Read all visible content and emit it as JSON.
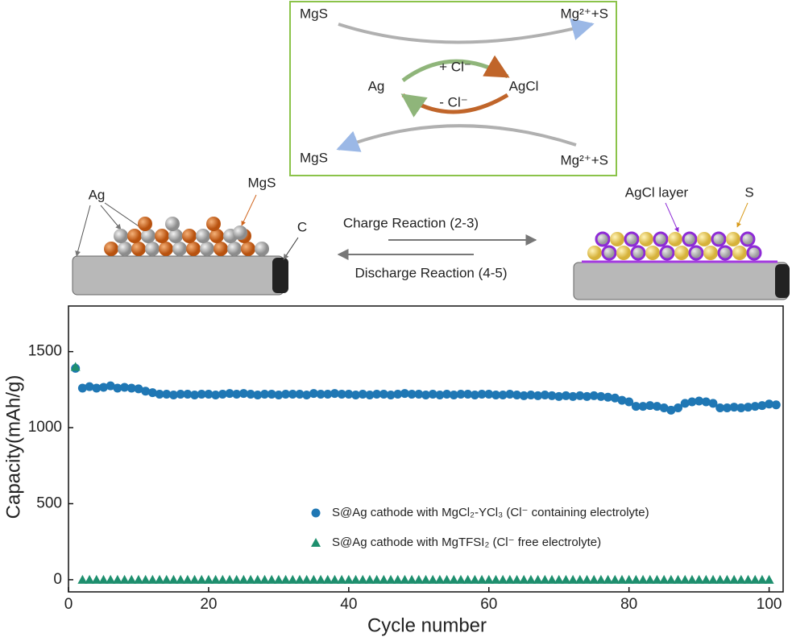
{
  "schematic": {
    "box": {
      "top_left": "MgS",
      "top_right": "Mg²⁺+S",
      "plus_cl": "+ Cl⁻",
      "ag": "Ag",
      "agcl": "AgCl",
      "minus_cl": "- Cl⁻",
      "bottom_left": "MgS",
      "bottom_right": "Mg²⁺+S"
    },
    "left": {
      "ag": "Ag",
      "mgs": "MgS",
      "c": "C"
    },
    "charge": "Charge Reaction (2-3)",
    "discharge": "Discharge Reaction (4-5)",
    "right": {
      "agcl_layer": "AgCl layer",
      "s": "S"
    }
  },
  "chart_data": {
    "type": "scatter",
    "xlabel": "Cycle number",
    "ylabel": "Capacity(mAh/g)",
    "xlim": [
      0,
      102
    ],
    "ylim": [
      -80,
      1800
    ],
    "xticks": [
      0,
      20,
      40,
      60,
      80,
      100
    ],
    "yticks": [
      0,
      500,
      1000,
      1500
    ],
    "legend": "lower right",
    "series": [
      {
        "name": "S@Ag cathode with MgCl₂-YCl₃ (Cl⁻ containing electrolyte)",
        "color": "#1f77b4",
        "marker": "circle",
        "x": [
          1,
          2,
          3,
          4,
          5,
          6,
          7,
          8,
          9,
          10,
          11,
          12,
          13,
          14,
          15,
          16,
          17,
          18,
          19,
          20,
          21,
          22,
          23,
          24,
          25,
          26,
          27,
          28,
          29,
          30,
          31,
          32,
          33,
          34,
          35,
          36,
          37,
          38,
          39,
          40,
          41,
          42,
          43,
          44,
          45,
          46,
          47,
          48,
          49,
          50,
          51,
          52,
          53,
          54,
          55,
          56,
          57,
          58,
          59,
          60,
          61,
          62,
          63,
          64,
          65,
          66,
          67,
          68,
          69,
          70,
          71,
          72,
          73,
          74,
          75,
          76,
          77,
          78,
          79,
          80,
          81,
          82,
          83,
          84,
          85,
          86,
          87,
          88,
          89,
          90,
          91,
          92,
          93,
          94,
          95,
          96,
          97,
          98,
          99,
          100,
          101
        ],
        "values": [
          1390,
          1260,
          1270,
          1260,
          1265,
          1275,
          1260,
          1265,
          1260,
          1255,
          1240,
          1230,
          1220,
          1220,
          1215,
          1220,
          1220,
          1215,
          1220,
          1220,
          1215,
          1220,
          1225,
          1220,
          1225,
          1220,
          1215,
          1220,
          1220,
          1215,
          1220,
          1220,
          1220,
          1215,
          1225,
          1220,
          1220,
          1225,
          1220,
          1220,
          1215,
          1220,
          1215,
          1220,
          1220,
          1215,
          1220,
          1225,
          1220,
          1220,
          1215,
          1220,
          1215,
          1220,
          1215,
          1220,
          1220,
          1215,
          1220,
          1220,
          1215,
          1215,
          1220,
          1215,
          1210,
          1215,
          1210,
          1215,
          1210,
          1205,
          1210,
          1205,
          1210,
          1205,
          1210,
          1205,
          1200,
          1195,
          1180,
          1170,
          1140,
          1140,
          1145,
          1140,
          1130,
          1115,
          1130,
          1160,
          1170,
          1175,
          1170,
          1160,
          1130,
          1130,
          1135,
          1130,
          1135,
          1140,
          1145,
          1155,
          1150
        ]
      },
      {
        "name": "S@Ag cathode with MgTFSI₂ (Cl⁻ free electrolyte)",
        "color": "#1e8f6e",
        "marker": "triangle",
        "x": [
          1,
          2,
          3,
          4,
          5,
          6,
          7,
          8,
          9,
          10,
          11,
          12,
          13,
          14,
          15,
          16,
          17,
          18,
          19,
          20,
          21,
          22,
          23,
          24,
          25,
          26,
          27,
          28,
          29,
          30,
          31,
          32,
          33,
          34,
          35,
          36,
          37,
          38,
          39,
          40,
          41,
          42,
          43,
          44,
          45,
          46,
          47,
          48,
          49,
          50,
          51,
          52,
          53,
          54,
          55,
          56,
          57,
          58,
          59,
          60,
          61,
          62,
          63,
          64,
          65,
          66,
          67,
          68,
          69,
          70,
          71,
          72,
          73,
          74,
          75,
          76,
          77,
          78,
          79,
          80,
          81,
          82,
          83,
          84,
          85,
          86,
          87,
          88,
          89,
          90,
          91,
          92,
          93,
          94,
          95,
          96,
          97,
          98,
          99,
          100
        ],
        "values": [
          1400,
          0,
          0,
          0,
          0,
          0,
          0,
          0,
          0,
          0,
          0,
          0,
          0,
          0,
          0,
          0,
          0,
          0,
          0,
          0,
          0,
          0,
          0,
          0,
          0,
          0,
          0,
          0,
          0,
          0,
          0,
          0,
          0,
          0,
          0,
          0,
          0,
          0,
          0,
          0,
          0,
          0,
          0,
          0,
          0,
          0,
          0,
          0,
          0,
          0,
          0,
          0,
          0,
          0,
          0,
          0,
          0,
          0,
          0,
          0,
          0,
          0,
          0,
          0,
          0,
          0,
          0,
          0,
          0,
          0,
          0,
          0,
          0,
          0,
          0,
          0,
          0,
          0,
          0,
          0,
          0,
          0,
          0,
          0,
          0,
          0,
          0,
          0,
          0,
          0,
          0,
          0,
          0,
          0,
          0,
          0,
          0,
          0,
          0,
          0
        ]
      }
    ]
  }
}
